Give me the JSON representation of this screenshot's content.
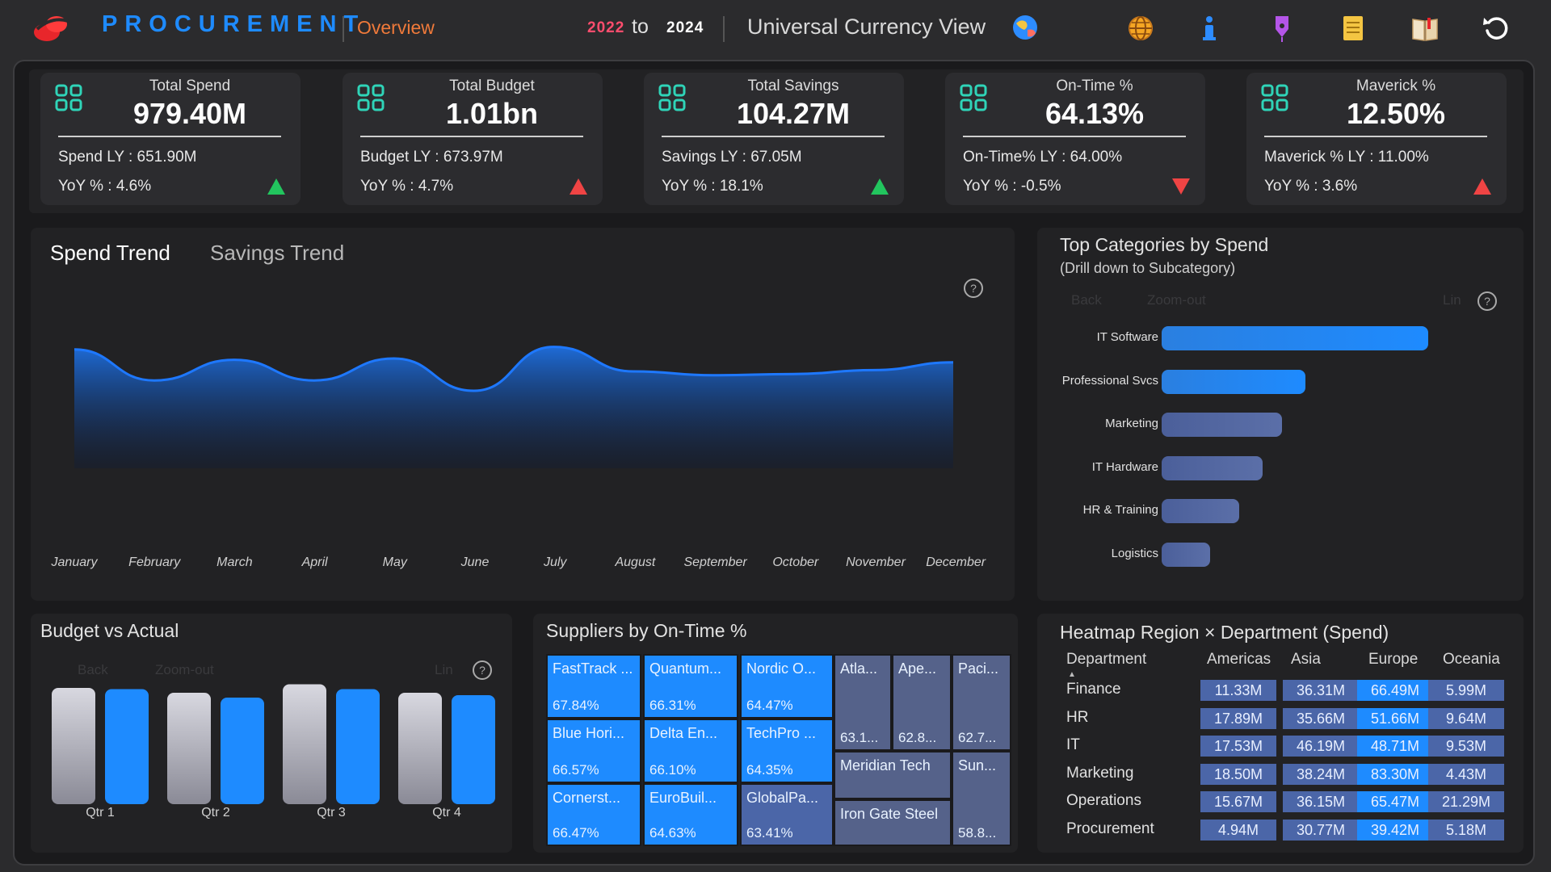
{
  "header": {
    "brand": "PROCUREMENT",
    "page": "Overview",
    "year_from": "2022",
    "year_to_word": "to",
    "year_to": "2024",
    "currency_view": "Universal Currency View",
    "icons": [
      "globe-icon",
      "info-icon",
      "pen-icon",
      "notes-icon",
      "book-icon",
      "reset-icon"
    ]
  },
  "kpis": [
    {
      "title": "Total Spend",
      "value": "979.40M",
      "ly": "Spend LY : 651.90M",
      "yoy": "YoY % : 4.6%",
      "trend": "up",
      "trend_color": "#22c55e"
    },
    {
      "title": "Total Budget",
      "value": "1.01bn",
      "ly": "Budget LY : 673.97M",
      "yoy": "YoY % : 4.7%",
      "trend": "up",
      "trend_color": "#ef4444"
    },
    {
      "title": "Total Savings",
      "value": "104.27M",
      "ly": "Savings LY : 67.05M",
      "yoy": "YoY % : 18.1%",
      "trend": "up",
      "trend_color": "#22c55e"
    },
    {
      "title": "On-Time %",
      "value": "64.13%",
      "ly": "On-Time% LY : 64.00%",
      "yoy": "YoY % : -0.5%",
      "trend": "down",
      "trend_color": "#ef4444"
    },
    {
      "title": "Maverick %",
      "value": "12.50%",
      "ly": "Maverick % LY : 11.00%",
      "yoy": "YoY % : 3.6%",
      "trend": "up",
      "trend_color": "#ef4444"
    }
  ],
  "trend_panel": {
    "tabs": [
      "Spend Trend",
      "Savings Trend"
    ],
    "active_tab": "Spend Trend"
  },
  "chart_data": [
    {
      "type": "area",
      "x": [
        "January",
        "February",
        "March",
        "April",
        "May",
        "June",
        "July",
        "August",
        "September",
        "October",
        "November",
        "December"
      ],
      "series": [
        {
          "values": [
            0.92,
            0.68,
            0.84,
            0.68,
            0.85,
            0.6,
            0.94,
            0.75,
            0.72,
            0.73,
            0.76,
            0.82
          ]
        }
      ],
      "title": "",
      "color": "#1e78ff"
    },
    {
      "type": "bar",
      "title": "Top Categories by Spend",
      "subtitle": "(Drill down to Subcategory)",
      "categories": [
        "IT Software",
        "Professional Svcs",
        "Marketing",
        "IT Hardware",
        "HR & Training",
        "Logistics"
      ],
      "values": [
        1.0,
        0.54,
        0.45,
        0.38,
        0.29,
        0.18
      ],
      "orientation": "horizontal"
    },
    {
      "type": "bar",
      "title": "Budget vs Actual",
      "categories": [
        "Qtr 1",
        "Qtr 2",
        "Qtr 3",
        "Qtr 4"
      ],
      "series": [
        {
          "values": [
            0.96,
            0.92,
            0.99,
            0.92
          ]
        },
        {
          "values": [
            0.95,
            0.88,
            0.95,
            0.9
          ]
        }
      ],
      "colors": [
        "#c8c8d0",
        "#1e8bff"
      ]
    }
  ],
  "toolbar_faded": {
    "back": "Back",
    "zoom_out": "Zoom-out",
    "lin": "Lin"
  },
  "suppliers": {
    "title": "Suppliers by On-Time %",
    "tiles": [
      {
        "name": "FastTrack ...",
        "value": "67.84%"
      },
      {
        "name": "Quantum...",
        "value": "66.31%"
      },
      {
        "name": "Nordic O...",
        "value": "64.47%"
      },
      {
        "name": "Blue Hori...",
        "value": "66.57%"
      },
      {
        "name": "Delta En...",
        "value": "66.10%"
      },
      {
        "name": "TechPro ...",
        "value": "64.35%"
      },
      {
        "name": "Cornerst...",
        "value": "66.47%"
      },
      {
        "name": "EuroBuil...",
        "value": "64.63%"
      },
      {
        "name": "GlobalPa...",
        "value": "63.41%"
      },
      {
        "name": "Atla...",
        "value": "63.1..."
      },
      {
        "name": "Ape...",
        "value": "62.8..."
      },
      {
        "name": "Paci...",
        "value": "62.7..."
      },
      {
        "name": "Meridian Tech",
        "value": ""
      },
      {
        "name": "Sun...",
        "value": "58.8..."
      },
      {
        "name": "Iron Gate Steel",
        "value": ""
      }
    ]
  },
  "heatmap": {
    "title": "Heatmap Region × Department (Spend)",
    "columns": [
      "Department",
      "Americas",
      "Asia",
      "Europe",
      "Oceania"
    ],
    "rows": [
      {
        "dept": "Finance",
        "cells": [
          "11.33M",
          "36.31M",
          "66.49M",
          "5.99M"
        ]
      },
      {
        "dept": "HR",
        "cells": [
          "17.89M",
          "35.66M",
          "51.66M",
          "9.64M"
        ]
      },
      {
        "dept": "IT",
        "cells": [
          "17.53M",
          "46.19M",
          "48.71M",
          "9.53M"
        ]
      },
      {
        "dept": "Marketing",
        "cells": [
          "18.50M",
          "38.24M",
          "83.30M",
          "4.43M"
        ]
      },
      {
        "dept": "Operations",
        "cells": [
          "15.67M",
          "36.15M",
          "65.47M",
          "21.29M"
        ]
      },
      {
        "dept": "Procurement",
        "cells": [
          "4.94M",
          "30.77M",
          "39.42M",
          "5.18M"
        ]
      }
    ]
  }
}
